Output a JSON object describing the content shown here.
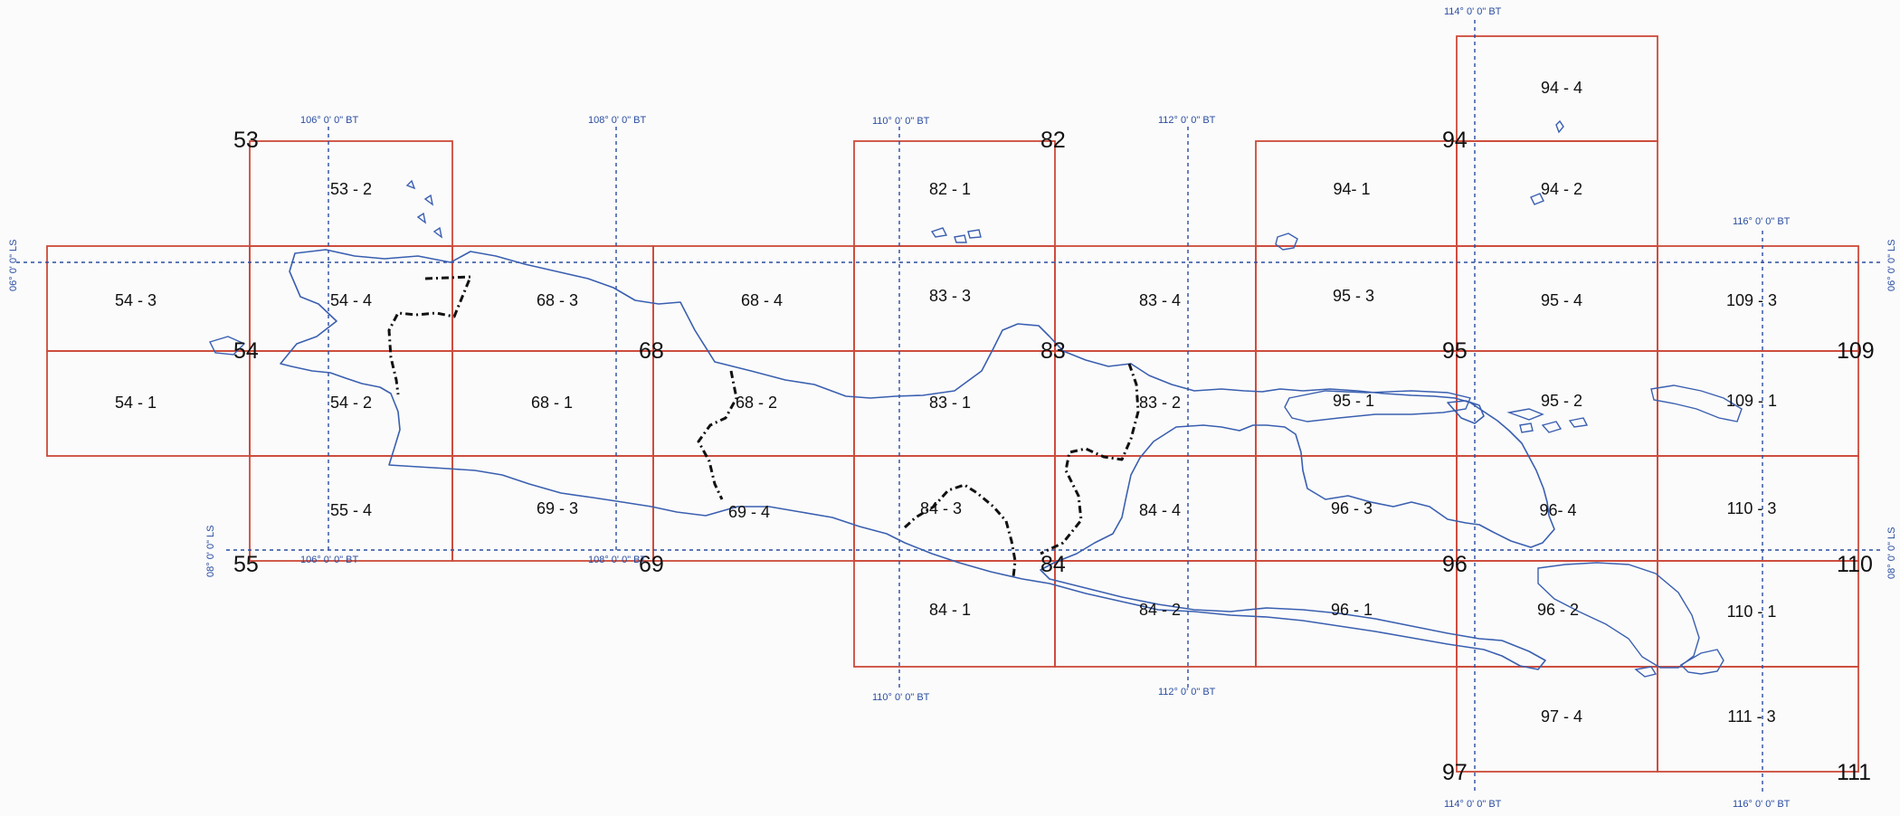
{
  "map": {
    "colors": {
      "grid": "#cc4a3a",
      "graticule": "#2a4da0",
      "coastline": "#3a5fb0",
      "province_boundary": "#111111"
    },
    "cells": [
      {
        "label": "53 - 2"
      },
      {
        "label": "54 - 3"
      },
      {
        "label": "54 - 4"
      },
      {
        "label": "54 - 1"
      },
      {
        "label": "54 - 2"
      },
      {
        "label": "55 - 4"
      },
      {
        "label": "68 - 3"
      },
      {
        "label": "68 - 4"
      },
      {
        "label": "68 - 1"
      },
      {
        "label": "68 - 2"
      },
      {
        "label": "69 - 3"
      },
      {
        "label": "69 - 4"
      },
      {
        "label": "82 - 1"
      },
      {
        "label": "83 - 3"
      },
      {
        "label": "83 - 4"
      },
      {
        "label": "83 - 1"
      },
      {
        "label": "83 - 2"
      },
      {
        "label": "84 - 3"
      },
      {
        "label": "84 - 4"
      },
      {
        "label": "84 - 1"
      },
      {
        "label": "84 - 2"
      },
      {
        "label": "94 - 4"
      },
      {
        "label": "94- 1"
      },
      {
        "label": "94 - 2"
      },
      {
        "label": "95 - 3"
      },
      {
        "label": "95 - 4"
      },
      {
        "label": "95 - 1"
      },
      {
        "label": "95 - 2"
      },
      {
        "label": "96 - 3"
      },
      {
        "label": "96- 4"
      },
      {
        "label": "96 - 1"
      },
      {
        "label": "96 - 2"
      },
      {
        "label": "97 - 4"
      },
      {
        "label": "109 - 3"
      },
      {
        "label": "109 - 1"
      },
      {
        "label": "110 - 3"
      },
      {
        "label": "110 - 1"
      },
      {
        "label": "111 - 3"
      }
    ],
    "sheet_numbers": [
      "53",
      "54",
      "55",
      "68",
      "69",
      "82",
      "83",
      "84",
      "94",
      "95",
      "96",
      "97",
      "109",
      "110",
      "111"
    ],
    "graticule_labels": {
      "lon_top": [
        "106° 0' 0\" BT",
        "108° 0' 0\" BT",
        "110° 0' 0\" BT",
        "112° 0' 0\" BT",
        "114° 0' 0\" BT",
        "116° 0' 0\" BT"
      ],
      "lon_bottom": [
        "106° 0' 0\" BT",
        "108° 0' 0\" BT",
        "110° 0' 0\" BT",
        "112° 0' 0\" BT",
        "114° 0' 0\" BT",
        "116° 0' 0\" BT"
      ],
      "lat_left": [
        "06° 0' 0\" LS",
        "08° 0' 0\" LS"
      ],
      "lat_right": [
        "06° 0' 0\" LS",
        "08° 0' 0\" LS"
      ]
    }
  }
}
